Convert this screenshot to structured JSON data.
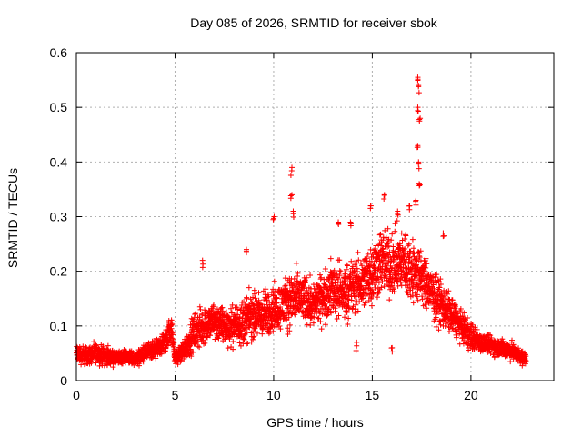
{
  "chart_data": {
    "type": "scatter",
    "title": "Day 085 of 2026, SRMTID for receiver sbok",
    "xlabel": "GPS time / hours",
    "ylabel": "SRMTID / TECUs",
    "xlim": [
      0,
      24.2
    ],
    "ylim": [
      0,
      0.6
    ],
    "xticks": [
      0,
      5,
      10,
      15,
      20
    ],
    "yticks": [
      0,
      0.1,
      0.2,
      0.3,
      0.4,
      0.5,
      0.6
    ],
    "grid": true,
    "marker": "+",
    "color": "#ff0000",
    "series": [
      {
        "name": "SRMTID",
        "envelope": {
          "x": [
            0,
            0.5,
            1,
            1.5,
            2,
            2.5,
            3,
            3.5,
            4,
            4.5,
            4.8,
            5,
            5.3,
            5.7,
            6,
            6.5,
            7,
            7.5,
            8,
            8.5,
            9,
            9.5,
            10,
            10.5,
            11,
            11.5,
            12,
            12.5,
            13,
            13.5,
            14,
            14.5,
            15,
            15.5,
            16,
            16.5,
            17,
            17.5,
            18,
            18.5,
            19,
            19.5,
            20,
            20.5,
            21,
            21.5,
            22,
            22.5,
            22.8
          ],
          "y": [
            0.05,
            0.045,
            0.05,
            0.045,
            0.04,
            0.045,
            0.04,
            0.05,
            0.055,
            0.07,
            0.1,
            0.04,
            0.05,
            0.07,
            0.09,
            0.1,
            0.11,
            0.1,
            0.1,
            0.11,
            0.12,
            0.12,
            0.13,
            0.14,
            0.15,
            0.15,
            0.14,
            0.15,
            0.17,
            0.16,
            0.17,
            0.18,
            0.2,
            0.22,
            0.21,
            0.22,
            0.2,
            0.19,
            0.16,
            0.14,
            0.12,
            0.1,
            0.08,
            0.07,
            0.065,
            0.06,
            0.055,
            0.045,
            0.04
          ],
          "spread": [
            0.02,
            0.02,
            0.02,
            0.02,
            0.015,
            0.015,
            0.015,
            0.02,
            0.02,
            0.025,
            0.03,
            0.015,
            0.02,
            0.03,
            0.04,
            0.04,
            0.04,
            0.04,
            0.04,
            0.05,
            0.05,
            0.05,
            0.05,
            0.05,
            0.06,
            0.05,
            0.05,
            0.05,
            0.06,
            0.06,
            0.06,
            0.06,
            0.07,
            0.07,
            0.07,
            0.07,
            0.07,
            0.06,
            0.05,
            0.05,
            0.04,
            0.03,
            0.03,
            0.02,
            0.02,
            0.02,
            0.02,
            0.015,
            0.015
          ]
        },
        "spikes": [
          {
            "x": 6.4,
            "y": 0.22
          },
          {
            "x": 8.6,
            "y": 0.24
          },
          {
            "x": 10.0,
            "y": 0.3
          },
          {
            "x": 10.9,
            "y": 0.39
          },
          {
            "x": 10.9,
            "y": 0.34
          },
          {
            "x": 11.0,
            "y": 0.31
          },
          {
            "x": 13.3,
            "y": 0.29
          },
          {
            "x": 13.9,
            "y": 0.29
          },
          {
            "x": 14.9,
            "y": 0.32
          },
          {
            "x": 15.6,
            "y": 0.34
          },
          {
            "x": 16.3,
            "y": 0.31
          },
          {
            "x": 16.9,
            "y": 0.32
          },
          {
            "x": 17.3,
            "y": 0.555
          },
          {
            "x": 17.35,
            "y": 0.54
          },
          {
            "x": 17.3,
            "y": 0.5
          },
          {
            "x": 17.4,
            "y": 0.48
          },
          {
            "x": 17.3,
            "y": 0.43
          },
          {
            "x": 17.35,
            "y": 0.4
          },
          {
            "x": 17.4,
            "y": 0.36
          },
          {
            "x": 17.2,
            "y": 0.33
          },
          {
            "x": 18.6,
            "y": 0.27
          },
          {
            "x": 16.0,
            "y": 0.06
          },
          {
            "x": 14.2,
            "y": 0.07
          }
        ]
      }
    ]
  }
}
